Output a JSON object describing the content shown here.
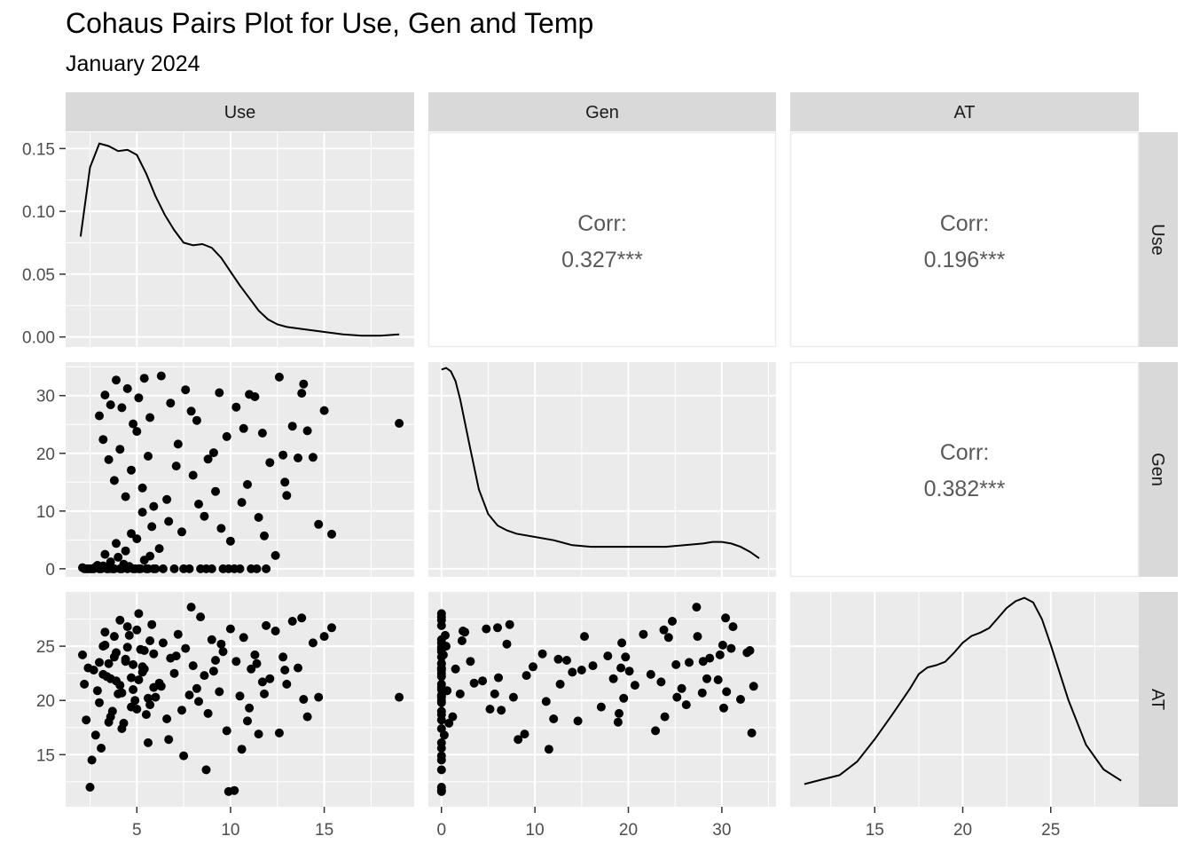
{
  "title": "Cohaus Pairs Plot for Use, Gen and Temp",
  "subtitle": "January 2024",
  "chart_data": {
    "type": "scatter",
    "variables": [
      "Use",
      "Gen",
      "AT"
    ],
    "strip_labels": [
      "Use",
      "Gen",
      "AT"
    ],
    "ranges": {
      "Use": [
        1.2,
        19.8
      ],
      "Gen": [
        -1.4,
        35.8
      ],
      "AT": [
        10.2,
        30.0
      ],
      "Use_density": [
        -0.008,
        0.163
      ]
    },
    "tick_labels": {
      "Use_x": [
        "5",
        "10",
        "15"
      ],
      "Gen_x": [
        "0",
        "10",
        "20",
        "30"
      ],
      "AT_x": [
        "15",
        "20",
        "25"
      ],
      "Use_density_y": [
        "0.00",
        "0.05",
        "0.10",
        "0.15"
      ],
      "Gen_y": [
        "0",
        "10",
        "20",
        "30"
      ],
      "AT_y": [
        "15",
        "20",
        "25"
      ]
    },
    "ticks": {
      "Use": [
        5,
        10,
        15
      ],
      "Gen": [
        0,
        10,
        20,
        30
      ],
      "AT": [
        15,
        20,
        25
      ],
      "Use_density": [
        0,
        0.05,
        0.1,
        0.15
      ]
    },
    "correlations": [
      {
        "pair": [
          "Use",
          "Gen"
        ],
        "label": "Corr:",
        "value": "0.327***"
      },
      {
        "pair": [
          "Use",
          "AT"
        ],
        "label": "Corr:",
        "value": "0.196***"
      },
      {
        "pair": [
          "Gen",
          "AT"
        ],
        "label": "Corr:",
        "value": "0.382***"
      }
    ],
    "densities": {
      "Use": {
        "x": [
          2.0,
          2.5,
          3.0,
          3.5,
          4.0,
          4.5,
          5.0,
          5.5,
          6.0,
          6.5,
          7.0,
          7.5,
          8.0,
          8.5,
          9.0,
          9.5,
          10.0,
          10.5,
          11.0,
          11.5,
          12.0,
          12.5,
          13.0,
          14.0,
          15.0,
          16.0,
          17.0,
          18.0,
          19.0
        ],
        "y": [
          0.08,
          0.135,
          0.154,
          0.152,
          0.148,
          0.149,
          0.145,
          0.13,
          0.112,
          0.097,
          0.085,
          0.075,
          0.073,
          0.074,
          0.071,
          0.063,
          0.052,
          0.041,
          0.031,
          0.021,
          0.014,
          0.01,
          0.008,
          0.006,
          0.004,
          0.002,
          0.001,
          0.001,
          0.002
        ]
      },
      "Gen": {
        "x": [
          0.0,
          0.5,
          1.0,
          1.5,
          2.0,
          3.0,
          4.0,
          5.0,
          6.0,
          7.0,
          8.0,
          10.0,
          12.0,
          14.0,
          16.0,
          18.0,
          20.0,
          22.0,
          24.0,
          26.0,
          28.0,
          29.0,
          30.0,
          31.0,
          32.0,
          33.0,
          34.0
        ],
        "y": [
          0.118,
          0.119,
          0.117,
          0.111,
          0.1,
          0.072,
          0.045,
          0.03,
          0.023,
          0.02,
          0.018,
          0.016,
          0.014,
          0.011,
          0.01,
          0.01,
          0.01,
          0.01,
          0.01,
          0.011,
          0.012,
          0.013,
          0.013,
          0.012,
          0.01,
          0.007,
          0.003
        ]
      },
      "AT": {
        "x": [
          11.0,
          12.0,
          13.0,
          14.0,
          15.0,
          16.0,
          17.0,
          17.5,
          18.0,
          18.5,
          19.0,
          19.5,
          20.0,
          20.5,
          21.0,
          21.5,
          22.0,
          22.5,
          23.0,
          23.5,
          24.0,
          24.5,
          25.0,
          26.0,
          27.0,
          28.0,
          29.0
        ],
        "y": [
          0.008,
          0.012,
          0.016,
          0.028,
          0.048,
          0.07,
          0.093,
          0.106,
          0.112,
          0.114,
          0.117,
          0.125,
          0.134,
          0.14,
          0.143,
          0.147,
          0.156,
          0.165,
          0.171,
          0.174,
          0.17,
          0.155,
          0.132,
          0.083,
          0.043,
          0.021,
          0.011
        ]
      }
    },
    "scatter_points": [
      {
        "use": 2.2,
        "gen": 0.0,
        "at": 21.5
      },
      {
        "use": 2.4,
        "gen": 0.0,
        "at": 23.0
      },
      {
        "use": 2.6,
        "gen": 0.0,
        "at": 14.5
      },
      {
        "use": 2.8,
        "gen": 0.3,
        "at": 16.8
      },
      {
        "use": 3.0,
        "gen": 0.0,
        "at": 19.8
      },
      {
        "use": 3.2,
        "gen": 0.5,
        "at": 25.0
      },
      {
        "use": 3.4,
        "gen": 0.0,
        "at": 22.2
      },
      {
        "use": 3.6,
        "gen": 1.2,
        "at": 18.5
      },
      {
        "use": 3.8,
        "gen": 0.0,
        "at": 24.0
      },
      {
        "use": 4.0,
        "gen": 2.0,
        "at": 20.6
      },
      {
        "use": 4.2,
        "gen": 0.0,
        "at": 17.4
      },
      {
        "use": 4.4,
        "gen": 3.1,
        "at": 23.6
      },
      {
        "use": 4.6,
        "gen": 0.4,
        "at": 26.0
      },
      {
        "use": 4.8,
        "gen": 0.0,
        "at": 21.0
      },
      {
        "use": 5.0,
        "gen": 5.2,
        "at": 19.2
      },
      {
        "use": 5.2,
        "gen": 0.0,
        "at": 24.7
      },
      {
        "use": 5.4,
        "gen": 1.5,
        "at": 22.9
      },
      {
        "use": 5.6,
        "gen": 0.0,
        "at": 16.1
      },
      {
        "use": 5.8,
        "gen": 7.3,
        "at": 27.0
      },
      {
        "use": 6.0,
        "gen": 0.0,
        "at": 20.3
      },
      {
        "use": 2.1,
        "gen": 0.2,
        "at": 24.2
      },
      {
        "use": 2.3,
        "gen": 0.0,
        "at": 18.2
      },
      {
        "use": 2.5,
        "gen": 0.0,
        "at": 12.0
      },
      {
        "use": 2.7,
        "gen": 0.0,
        "at": 22.8
      },
      {
        "use": 2.9,
        "gen": 0.6,
        "at": 20.9
      },
      {
        "use": 3.1,
        "gen": 0.0,
        "at": 15.6
      },
      {
        "use": 3.3,
        "gen": 2.5,
        "at": 26.3
      },
      {
        "use": 3.5,
        "gen": 0.0,
        "at": 23.4
      },
      {
        "use": 3.7,
        "gen": 0.0,
        "at": 19.0
      },
      {
        "use": 3.9,
        "gen": 4.4,
        "at": 21.8
      },
      {
        "use": 4.1,
        "gen": 0.0,
        "at": 27.4
      },
      {
        "use": 4.3,
        "gen": 0.8,
        "at": 17.9
      },
      {
        "use": 4.5,
        "gen": 0.0,
        "at": 24.9
      },
      {
        "use": 4.7,
        "gen": 6.1,
        "at": 22.1
      },
      {
        "use": 4.9,
        "gen": 0.0,
        "at": 20.0
      },
      {
        "use": 5.1,
        "gen": 0.0,
        "at": 28.0
      },
      {
        "use": 5.3,
        "gen": 9.8,
        "at": 23.1
      },
      {
        "use": 5.5,
        "gen": 0.0,
        "at": 18.7
      },
      {
        "use": 5.7,
        "gen": 2.2,
        "at": 25.5
      },
      {
        "use": 5.9,
        "gen": 0.0,
        "at": 21.2
      },
      {
        "use": 3.0,
        "gen": 26.5,
        "at": 23.5
      },
      {
        "use": 3.3,
        "gen": 30.1,
        "at": 25.1
      },
      {
        "use": 3.6,
        "gen": 28.4,
        "at": 22.0
      },
      {
        "use": 3.9,
        "gen": 32.7,
        "at": 24.4
      },
      {
        "use": 4.2,
        "gen": 27.9,
        "at": 20.7
      },
      {
        "use": 4.5,
        "gen": 31.2,
        "at": 26.8
      },
      {
        "use": 4.8,
        "gen": 25.1,
        "at": 23.3
      },
      {
        "use": 5.1,
        "gen": 29.6,
        "at": 21.9
      },
      {
        "use": 5.4,
        "gen": 33.0,
        "at": 24.6
      },
      {
        "use": 5.7,
        "gen": 26.2,
        "at": 19.6
      },
      {
        "use": 3.2,
        "gen": 22.4,
        "at": 22.4
      },
      {
        "use": 3.5,
        "gen": 18.9,
        "at": 18.0
      },
      {
        "use": 3.8,
        "gen": 15.3,
        "at": 25.9
      },
      {
        "use": 4.1,
        "gen": 20.7,
        "at": 21.4
      },
      {
        "use": 4.4,
        "gen": 12.5,
        "at": 23.8
      },
      {
        "use": 4.7,
        "gen": 17.1,
        "at": 19.4
      },
      {
        "use": 5.0,
        "gen": 23.8,
        "at": 26.5
      },
      {
        "use": 5.3,
        "gen": 14.0,
        "at": 22.6
      },
      {
        "use": 5.6,
        "gen": 19.5,
        "at": 20.2
      },
      {
        "use": 5.9,
        "gen": 10.8,
        "at": 24.3
      },
      {
        "use": 6.2,
        "gen": 3.5,
        "at": 21.6
      },
      {
        "use": 6.4,
        "gen": 0.0,
        "at": 25.3
      },
      {
        "use": 6.6,
        "gen": 12.0,
        "at": 18.3
      },
      {
        "use": 6.8,
        "gen": 28.7,
        "at": 23.9
      },
      {
        "use": 7.0,
        "gen": 0.0,
        "at": 22.5
      },
      {
        "use": 7.2,
        "gen": 21.6,
        "at": 26.1
      },
      {
        "use": 7.4,
        "gen": 6.4,
        "at": 19.1
      },
      {
        "use": 7.6,
        "gen": 31.0,
        "at": 24.8
      },
      {
        "use": 7.8,
        "gen": 0.0,
        "at": 20.5
      },
      {
        "use": 8.0,
        "gen": 16.2,
        "at": 23.2
      },
      {
        "use": 8.2,
        "gen": 25.7,
        "at": 21.1
      },
      {
        "use": 8.4,
        "gen": 0.0,
        "at": 27.7
      },
      {
        "use": 8.6,
        "gen": 9.1,
        "at": 22.3
      },
      {
        "use": 8.8,
        "gen": 19.0,
        "at": 18.8
      },
      {
        "use": 9.0,
        "gen": 0.0,
        "at": 25.6
      },
      {
        "use": 9.2,
        "gen": 13.4,
        "at": 23.7
      },
      {
        "use": 9.4,
        "gen": 30.5,
        "at": 20.8
      },
      {
        "use": 9.6,
        "gen": 0.0,
        "at": 24.5
      },
      {
        "use": 9.8,
        "gen": 22.9,
        "at": 17.2
      },
      {
        "use": 10.0,
        "gen": 4.8,
        "at": 26.6
      },
      {
        "use": 6.3,
        "gen": 33.4,
        "at": 21.3
      },
      {
        "use": 6.7,
        "gen": 8.2,
        "at": 16.4
      },
      {
        "use": 7.1,
        "gen": 17.8,
        "at": 24.1
      },
      {
        "use": 7.5,
        "gen": 0.0,
        "at": 14.9
      },
      {
        "use": 7.9,
        "gen": 27.3,
        "at": 28.6
      },
      {
        "use": 8.3,
        "gen": 11.2,
        "at": 19.9
      },
      {
        "use": 8.7,
        "gen": 0.0,
        "at": 13.6
      },
      {
        "use": 9.1,
        "gen": 20.1,
        "at": 22.7
      },
      {
        "use": 9.5,
        "gen": 7.0,
        "at": 25.2
      },
      {
        "use": 9.9,
        "gen": 0.0,
        "at": 11.6
      },
      {
        "use": 10.3,
        "gen": 28.0,
        "at": 23.6
      },
      {
        "use": 10.5,
        "gen": 0.0,
        "at": 20.4
      },
      {
        "use": 10.7,
        "gen": 24.3,
        "at": 25.8
      },
      {
        "use": 10.9,
        "gen": 14.6,
        "at": 18.1
      },
      {
        "use": 11.1,
        "gen": 0.0,
        "at": 22.9
      },
      {
        "use": 11.3,
        "gen": 29.8,
        "at": 24.2
      },
      {
        "use": 11.5,
        "gen": 8.9,
        "at": 16.9
      },
      {
        "use": 11.7,
        "gen": 23.5,
        "at": 21.7
      },
      {
        "use": 11.9,
        "gen": 0.0,
        "at": 26.9
      },
      {
        "use": 12.1,
        "gen": 18.4,
        "at": 22.0
      },
      {
        "use": 10.2,
        "gen": 0.0,
        "at": 11.7
      },
      {
        "use": 10.6,
        "gen": 11.5,
        "at": 15.5
      },
      {
        "use": 11.0,
        "gen": 30.2,
        "at": 19.3
      },
      {
        "use": 11.4,
        "gen": 0.0,
        "at": 23.4
      },
      {
        "use": 11.8,
        "gen": 5.7,
        "at": 20.6
      },
      {
        "use": 12.4,
        "gen": 2.3,
        "at": 26.4
      },
      {
        "use": 12.6,
        "gen": 33.2,
        "at": 17.0
      },
      {
        "use": 12.8,
        "gen": 19.7,
        "at": 24.0
      },
      {
        "use": 13.0,
        "gen": 12.7,
        "at": 21.5
      },
      {
        "use": 13.3,
        "gen": 24.7,
        "at": 27.3
      },
      {
        "use": 13.6,
        "gen": 19.2,
        "at": 23.0
      },
      {
        "use": 13.9,
        "gen": 32.0,
        "at": 20.1
      },
      {
        "use": 14.1,
        "gen": 23.9,
        "at": 18.5
      },
      {
        "use": 14.4,
        "gen": 19.3,
        "at": 25.3
      },
      {
        "use": 14.7,
        "gen": 7.7,
        "at": 20.3
      },
      {
        "use": 15.0,
        "gen": 27.4,
        "at": 25.9
      },
      {
        "use": 15.4,
        "gen": 6.0,
        "at": 26.7
      },
      {
        "use": 19.0,
        "gen": 25.2,
        "at": 20.3
      },
      {
        "use": 13.8,
        "gen": 30.4,
        "at": 27.6
      },
      {
        "use": 12.9,
        "gen": 15.0,
        "at": 22.8
      }
    ]
  }
}
